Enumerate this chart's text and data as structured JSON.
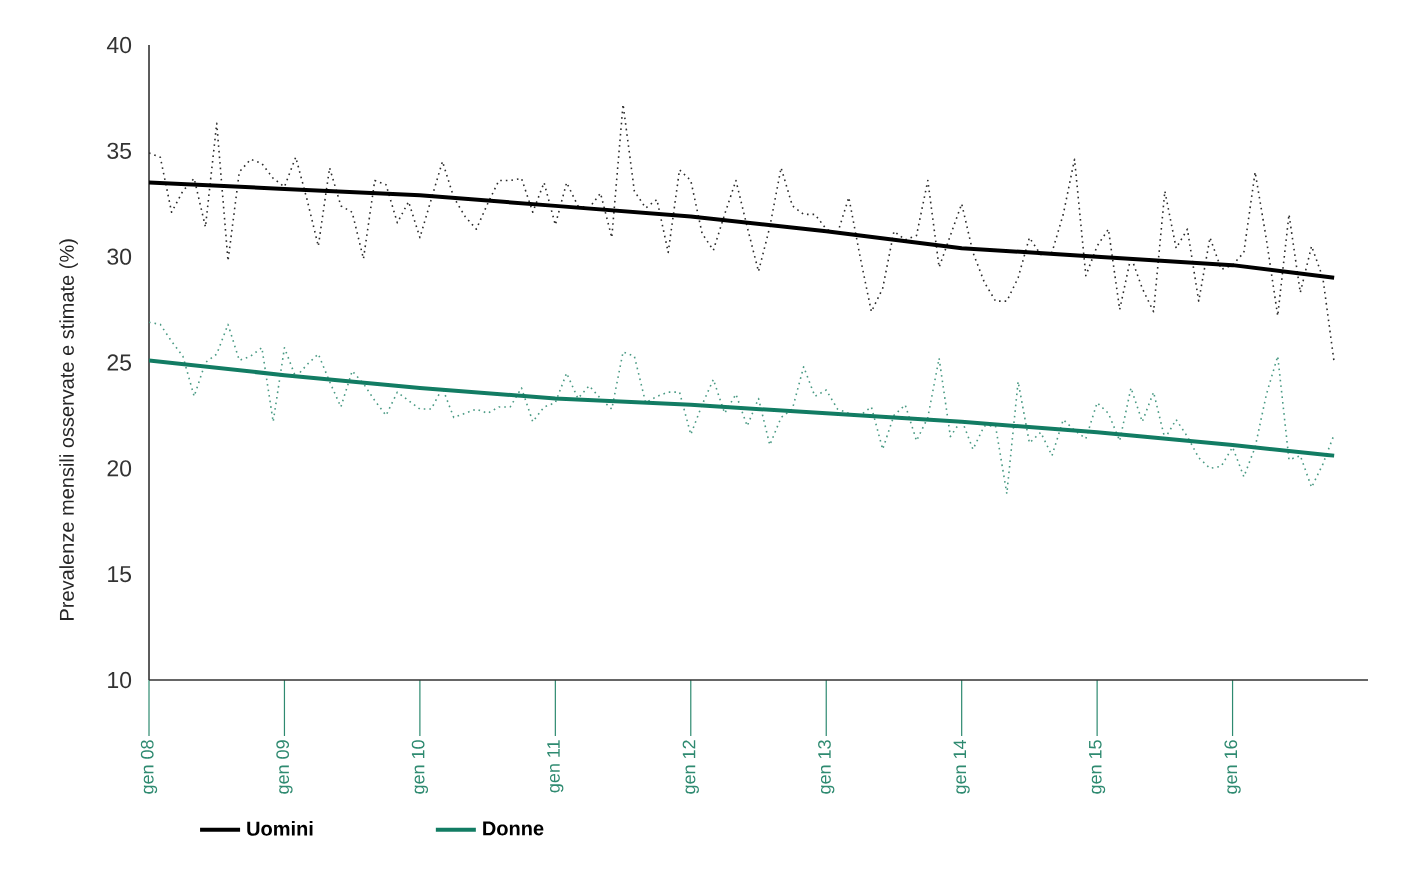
{
  "chart_data": {
    "type": "line",
    "ylabel": "Prevalenze mensili osservate e stimate (%)",
    "x": [
      "2008-01",
      "2008-02",
      "2008-03",
      "2008-04",
      "2008-05",
      "2008-06",
      "2008-07",
      "2008-08",
      "2008-09",
      "2008-10",
      "2008-11",
      "2008-12",
      "2009-01",
      "2009-02",
      "2009-03",
      "2009-04",
      "2009-05",
      "2009-06",
      "2009-07",
      "2009-08",
      "2009-09",
      "2009-10",
      "2009-11",
      "2009-12",
      "2010-01",
      "2010-02",
      "2010-03",
      "2010-04",
      "2010-05",
      "2010-06",
      "2010-07",
      "2010-08",
      "2010-09",
      "2010-10",
      "2010-11",
      "2010-12",
      "2011-01",
      "2011-02",
      "2011-03",
      "2011-04",
      "2011-05",
      "2011-06",
      "2011-07",
      "2011-08",
      "2011-09",
      "2011-10",
      "2011-11",
      "2011-12",
      "2012-01",
      "2012-02",
      "2012-03",
      "2012-04",
      "2012-05",
      "2012-06",
      "2012-07",
      "2012-08",
      "2012-09",
      "2012-10",
      "2012-11",
      "2012-12",
      "2013-01",
      "2013-02",
      "2013-03",
      "2013-04",
      "2013-05",
      "2013-06",
      "2013-07",
      "2013-08",
      "2013-09",
      "2013-10",
      "2013-11",
      "2013-12",
      "2014-01",
      "2014-02",
      "2014-03",
      "2014-04",
      "2014-05",
      "2014-06",
      "2014-07",
      "2014-08",
      "2014-09",
      "2014-10",
      "2014-11",
      "2014-12",
      "2015-01",
      "2015-02",
      "2015-03",
      "2015-04",
      "2015-05",
      "2015-06",
      "2015-07",
      "2015-08",
      "2015-09",
      "2015-10",
      "2015-11",
      "2015-12",
      "2016-01",
      "2016-02",
      "2016-03",
      "2016-04",
      "2016-05",
      "2016-06",
      "2016-07",
      "2016-08",
      "2016-09",
      "2016-10"
    ],
    "series": [
      {
        "color": "#2b2b2b",
        "line_style": "dotted",
        "values": [
          34.9,
          34.7,
          32.1,
          33.1,
          33.7,
          31.4,
          36.3,
          29.8,
          34.0,
          34.6,
          34.4,
          33.7,
          33.3,
          34.7,
          32.7,
          30.5,
          34.2,
          32.4,
          32.1,
          29.9,
          33.6,
          33.4,
          31.6,
          32.6,
          30.9,
          32.7,
          34.5,
          32.8,
          31.9,
          31.3,
          32.5,
          33.6,
          33.6,
          33.7,
          32.1,
          33.5,
          31.5,
          33.5,
          32.4,
          32.3,
          33.0,
          30.9,
          37.2,
          33.1,
          32.3,
          32.7,
          30.2,
          34.1,
          33.6,
          31.1,
          30.3,
          32.0,
          33.6,
          31.4,
          29.3,
          31.4,
          34.2,
          32.4,
          32.0,
          32.0,
          31.3,
          31.1,
          32.8,
          30.0,
          27.4,
          28.5,
          31.2,
          30.8,
          31.0,
          33.6,
          29.5,
          31.0,
          32.5,
          30.2,
          28.8,
          27.9,
          27.9,
          29.0,
          30.9,
          30.1,
          30.2,
          32.0,
          34.6,
          29.1,
          30.5,
          31.3,
          27.5,
          30.0,
          28.5,
          27.4,
          33.1,
          30.4,
          31.3,
          27.9,
          30.9,
          29.4,
          29.6,
          30.2,
          34.0,
          30.8,
          27.2,
          32.0,
          28.3,
          30.5,
          29.0,
          25.0
        ]
      },
      {
        "color": "#4a9a84",
        "line_style": "dotted",
        "values": [
          26.9,
          26.8,
          26.0,
          25.3,
          23.4,
          25.0,
          25.4,
          26.8,
          25.1,
          25.3,
          25.7,
          22.2,
          25.7,
          24.3,
          24.9,
          25.4,
          24.1,
          22.9,
          24.6,
          24.0,
          23.2,
          22.5,
          23.6,
          23.2,
          22.8,
          22.8,
          23.8,
          22.4,
          22.6,
          22.8,
          22.6,
          22.9,
          22.9,
          23.8,
          22.2,
          22.9,
          23.1,
          24.5,
          23.3,
          23.9,
          23.3,
          22.8,
          25.5,
          25.3,
          23.1,
          23.4,
          23.6,
          23.6,
          21.6,
          23.0,
          24.2,
          22.6,
          23.5,
          22.0,
          23.3,
          21.1,
          22.4,
          22.8,
          24.8,
          23.4,
          23.7,
          22.8,
          22.6,
          22.5,
          22.9,
          20.9,
          22.5,
          23.0,
          21.3,
          22.4,
          25.2,
          21.5,
          22.3,
          20.9,
          22.0,
          22.0,
          18.8,
          24.1,
          21.2,
          21.7,
          20.6,
          22.3,
          21.8,
          21.4,
          23.1,
          22.6,
          21.3,
          23.8,
          22.2,
          23.6,
          21.4,
          22.3,
          21.5,
          20.5,
          20.0,
          20.1,
          21.0,
          19.6,
          21.0,
          23.5,
          25.3,
          20.4,
          20.6,
          19.1,
          20.2,
          21.6
        ]
      },
      {
        "name": "Uomini",
        "color": "#000000",
        "line_style": "solid",
        "x": [
          "2008-01",
          "2009-01",
          "2010-01",
          "2011-01",
          "2012-01",
          "2013-01",
          "2014-01",
          "2015-01",
          "2016-01",
          "2016-10"
        ],
        "values": [
          33.5,
          33.2,
          32.9,
          32.4,
          31.9,
          31.2,
          30.4,
          30.0,
          29.6,
          29.0
        ]
      },
      {
        "name": "Donne",
        "color": "#127c63",
        "line_style": "solid",
        "x": [
          "2008-01",
          "2009-01",
          "2010-01",
          "2011-01",
          "2012-01",
          "2013-01",
          "2014-01",
          "2015-01",
          "2016-01",
          "2016-10"
        ],
        "values": [
          25.1,
          24.4,
          23.8,
          23.3,
          23.0,
          22.6,
          22.2,
          21.7,
          21.1,
          20.6
        ]
      }
    ],
    "xlim": [
      "2008-01",
      "2017-01"
    ],
    "xticks": [
      {
        "value": "2008-01",
        "label": "gen 08"
      },
      {
        "value": "2009-01",
        "label": "gen 09"
      },
      {
        "value": "2010-01",
        "label": "gen 10"
      },
      {
        "value": "2011-01",
        "label": "gen 11"
      },
      {
        "value": "2012-01",
        "label": "gen 12"
      },
      {
        "value": "2013-01",
        "label": "gen 13"
      },
      {
        "value": "2014-01",
        "label": "gen 14"
      },
      {
        "value": "2015-01",
        "label": "gen 15"
      },
      {
        "value": "2016-01",
        "label": "gen 16"
      }
    ],
    "ylim": [
      10,
      40
    ],
    "yticks": [
      10,
      15,
      20,
      25,
      30,
      35,
      40
    ],
    "grid": false,
    "legend": "bottom",
    "marker": "none"
  }
}
